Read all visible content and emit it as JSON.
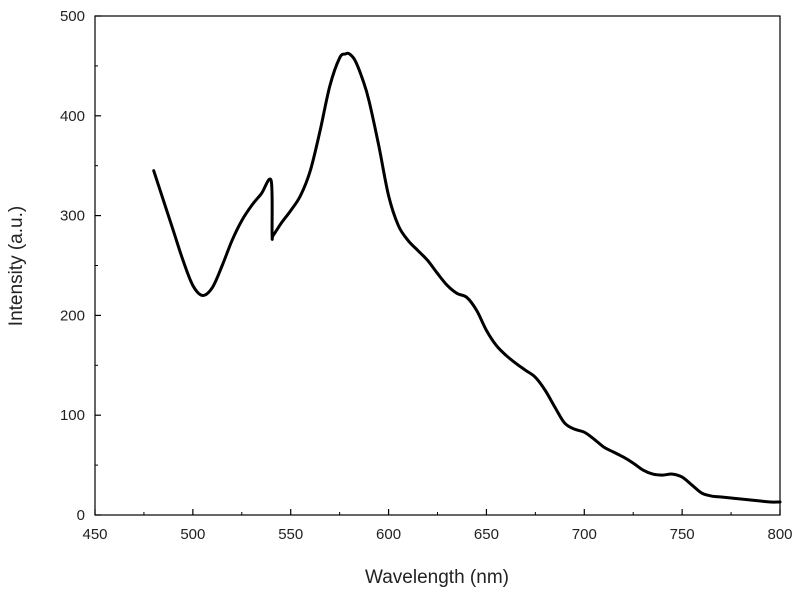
{
  "chart_data": {
    "type": "line",
    "title": "",
    "xlabel": "Wavelength (nm)",
    "ylabel": "Intensity (a.u.)",
    "xlim": [
      450,
      800
    ],
    "ylim": [
      0,
      500
    ],
    "x_ticks": [
      450,
      500,
      550,
      600,
      650,
      700,
      750,
      800
    ],
    "y_ticks": [
      0,
      100,
      200,
      300,
      400,
      500
    ],
    "x_tick_labels": [
      "450",
      "500",
      "550",
      "600",
      "650",
      "700",
      "750",
      "800"
    ],
    "y_tick_labels": [
      "0",
      "100",
      "200",
      "300",
      "400",
      "500"
    ],
    "grid": false,
    "legend": "none",
    "line_color": "#000000",
    "series": [
      {
        "x": [
          480,
          485,
          490,
          495,
          500,
          505,
          510,
          515,
          520,
          525,
          530,
          535,
          540,
          540.5,
          541,
          545,
          550,
          555,
          560,
          565,
          570,
          575,
          578,
          580,
          583,
          587,
          590,
          595,
          600,
          605,
          610,
          615,
          620,
          625,
          630,
          635,
          640,
          645,
          650,
          655,
          660,
          665,
          670,
          675,
          680,
          685,
          690,
          695,
          700,
          705,
          710,
          715,
          720,
          725,
          730,
          735,
          740,
          745,
          750,
          755,
          760,
          765,
          770,
          775,
          780,
          785,
          790,
          795,
          800
        ],
        "y": [
          345,
          315,
          285,
          255,
          230,
          220,
          228,
          250,
          275,
          295,
          310,
          322,
          335,
          281,
          280,
          292,
          305,
          320,
          345,
          385,
          430,
          458,
          462,
          462,
          455,
          435,
          415,
          370,
          320,
          290,
          275,
          265,
          255,
          242,
          230,
          222,
          218,
          205,
          185,
          170,
          160,
          152,
          145,
          138,
          125,
          108,
          92,
          86,
          83,
          76,
          68,
          63,
          58,
          52,
          45,
          41,
          40,
          41,
          38,
          30,
          22,
          19,
          18,
          17,
          16,
          15,
          14,
          13,
          13
        ]
      }
    ]
  }
}
